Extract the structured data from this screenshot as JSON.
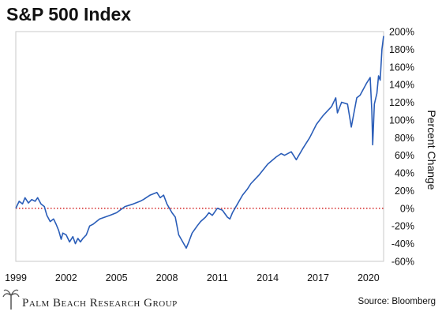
{
  "chart_data": {
    "type": "line",
    "title": "S&P 500 Index",
    "ylabel": "Percent Change",
    "xlabel": "",
    "xlim": [
      1999,
      2020.9
    ],
    "ylim": [
      -60,
      200
    ],
    "x_ticks": [
      "1999",
      "2002",
      "2005",
      "2008",
      "2011",
      "2014",
      "2017",
      "2020"
    ],
    "y_ticks": [
      "200%",
      "180%",
      "160%",
      "140%",
      "120%",
      "100%",
      "80%",
      "60%",
      "40%",
      "20%",
      "0%",
      "-20%",
      "-40%",
      "-60%"
    ],
    "baseline": 0,
    "baseline_style": "red dotted",
    "series_color": "#2a5db8",
    "series": [
      {
        "x": [
          1999.0,
          1999.2,
          1999.4,
          1999.55,
          1999.75,
          1999.95,
          2000.15,
          2000.3,
          2000.5,
          2000.7,
          2000.85,
          2001.05,
          2001.25,
          2001.4,
          2001.55,
          2001.7,
          2001.8,
          2002.0,
          2002.2,
          2002.4,
          2002.55,
          2002.7,
          2002.85,
          2003.0,
          2003.2,
          2003.4,
          2003.6,
          2003.8,
          2004.0,
          2004.3,
          2004.6,
          2005.0,
          2005.5,
          2006.0,
          2006.4,
          2006.6,
          2007.0,
          2007.4,
          2007.6,
          2007.8,
          2008.0,
          2008.3,
          2008.5,
          2008.7,
          2008.85,
          2009.0,
          2009.15,
          2009.3,
          2009.5,
          2009.8,
          2010.0,
          2010.3,
          2010.5,
          2010.7,
          2011.0,
          2011.3,
          2011.6,
          2011.75,
          2011.9,
          2012.2,
          2012.5,
          2012.8,
          2013.0,
          2013.5,
          2014.0,
          2014.5,
          2014.8,
          2015.0,
          2015.4,
          2015.7,
          2016.1,
          2016.5,
          2016.9,
          2017.3,
          2017.8,
          2018.05,
          2018.15,
          2018.4,
          2018.75,
          2018.98,
          2019.3,
          2019.5,
          2019.9,
          2020.1,
          2020.2,
          2020.25,
          2020.35,
          2020.5,
          2020.6,
          2020.7,
          2020.8,
          2020.9
        ],
        "values": [
          0,
          8,
          5,
          12,
          6,
          10,
          8,
          12,
          5,
          2,
          -8,
          -15,
          -12,
          -18,
          -25,
          -35,
          -28,
          -30,
          -38,
          -32,
          -40,
          -34,
          -38,
          -34,
          -30,
          -20,
          -18,
          -15,
          -12,
          -10,
          -8,
          -5,
          2,
          5,
          8,
          10,
          15,
          18,
          12,
          15,
          5,
          -5,
          -10,
          -30,
          -35,
          -40,
          -45,
          -38,
          -28,
          -20,
          -15,
          -10,
          -5,
          -8,
          0,
          -2,
          -10,
          -12,
          -5,
          5,
          15,
          22,
          28,
          38,
          50,
          58,
          62,
          60,
          64,
          55,
          68,
          80,
          95,
          105,
          115,
          125,
          108,
          120,
          118,
          92,
          125,
          128,
          142,
          148,
          110,
          72,
          118,
          130,
          150,
          145,
          180,
          195
        ]
      }
    ]
  },
  "footer": {
    "brand": "Palm Beach Research Group",
    "brand_icon": "palm-tree-logo-icon",
    "source": "Source: Bloomberg"
  }
}
